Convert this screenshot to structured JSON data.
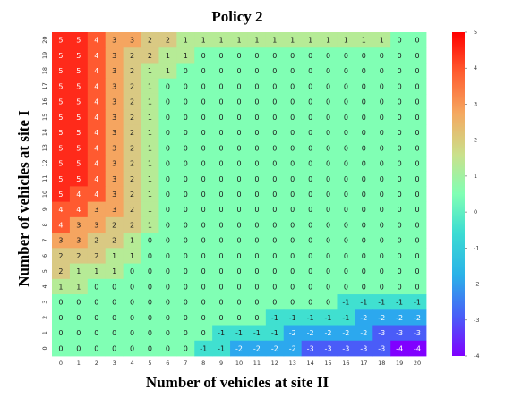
{
  "chart_data": {
    "type": "heatmap",
    "title": "Policy 2",
    "xlabel": "Number of vehicles at site II",
    "ylabel": "Number of vehicles at site I",
    "x_ticks": [
      "0",
      "1",
      "2",
      "3",
      "4",
      "5",
      "6",
      "7",
      "8",
      "9",
      "10",
      "11",
      "12",
      "13",
      "14",
      "15",
      "16",
      "17",
      "18",
      "19",
      "20"
    ],
    "y_ticks": [
      "0",
      "1",
      "2",
      "3",
      "4",
      "5",
      "6",
      "7",
      "8",
      "9",
      "10",
      "11",
      "12",
      "13",
      "14",
      "15",
      "16",
      "17",
      "18",
      "19",
      "20"
    ],
    "colorbar_ticks": [
      "5",
      "4",
      "3",
      "2",
      "1",
      "0",
      "-1",
      "-2",
      "-3",
      "-4"
    ],
    "vmin": -4,
    "vmax": 5,
    "colormap": "rainbow",
    "grid": false,
    "rows_y_descending": [
      [
        5,
        5,
        4,
        3,
        3,
        2,
        2,
        1,
        1,
        1,
        1,
        1,
        1,
        1,
        1,
        1,
        1,
        1,
        1,
        0,
        0
      ],
      [
        5,
        5,
        4,
        3,
        2,
        2,
        1,
        1,
        0,
        0,
        0,
        0,
        0,
        0,
        0,
        0,
        0,
        0,
        0,
        0,
        0
      ],
      [
        5,
        5,
        4,
        3,
        2,
        1,
        1,
        0,
        0,
        0,
        0,
        0,
        0,
        0,
        0,
        0,
        0,
        0,
        0,
        0,
        0
      ],
      [
        5,
        5,
        4,
        3,
        2,
        1,
        0,
        0,
        0,
        0,
        0,
        0,
        0,
        0,
        0,
        0,
        0,
        0,
        0,
        0,
        0
      ],
      [
        5,
        5,
        4,
        3,
        2,
        1,
        0,
        0,
        0,
        0,
        0,
        0,
        0,
        0,
        0,
        0,
        0,
        0,
        0,
        0,
        0
      ],
      [
        5,
        5,
        4,
        3,
        2,
        1,
        0,
        0,
        0,
        0,
        0,
        0,
        0,
        0,
        0,
        0,
        0,
        0,
        0,
        0,
        0
      ],
      [
        5,
        5,
        4,
        3,
        2,
        1,
        0,
        0,
        0,
        0,
        0,
        0,
        0,
        0,
        0,
        0,
        0,
        0,
        0,
        0,
        0
      ],
      [
        5,
        5,
        4,
        3,
        2,
        1,
        0,
        0,
        0,
        0,
        0,
        0,
        0,
        0,
        0,
        0,
        0,
        0,
        0,
        0,
        0
      ],
      [
        5,
        5,
        4,
        3,
        2,
        1,
        0,
        0,
        0,
        0,
        0,
        0,
        0,
        0,
        0,
        0,
        0,
        0,
        0,
        0,
        0
      ],
      [
        5,
        5,
        4,
        3,
        2,
        1,
        0,
        0,
        0,
        0,
        0,
        0,
        0,
        0,
        0,
        0,
        0,
        0,
        0,
        0,
        0
      ],
      [
        5,
        4,
        4,
        3,
        2,
        1,
        0,
        0,
        0,
        0,
        0,
        0,
        0,
        0,
        0,
        0,
        0,
        0,
        0,
        0,
        0
      ],
      [
        4,
        4,
        3,
        3,
        2,
        1,
        0,
        0,
        0,
        0,
        0,
        0,
        0,
        0,
        0,
        0,
        0,
        0,
        0,
        0,
        0
      ],
      [
        4,
        3,
        3,
        2,
        2,
        1,
        0,
        0,
        0,
        0,
        0,
        0,
        0,
        0,
        0,
        0,
        0,
        0,
        0,
        0,
        0
      ],
      [
        3,
        3,
        2,
        2,
        1,
        0,
        0,
        0,
        0,
        0,
        0,
        0,
        0,
        0,
        0,
        0,
        0,
        0,
        0,
        0,
        0
      ],
      [
        2,
        2,
        2,
        1,
        1,
        0,
        0,
        0,
        0,
        0,
        0,
        0,
        0,
        0,
        0,
        0,
        0,
        0,
        0,
        0,
        0
      ],
      [
        2,
        1,
        1,
        1,
        0,
        0,
        0,
        0,
        0,
        0,
        0,
        0,
        0,
        0,
        0,
        0,
        0,
        0,
        0,
        0,
        0
      ],
      [
        1,
        1,
        0,
        0,
        0,
        0,
        0,
        0,
        0,
        0,
        0,
        0,
        0,
        0,
        0,
        0,
        0,
        0,
        0,
        0,
        0
      ],
      [
        0,
        0,
        0,
        0,
        0,
        0,
        0,
        0,
        0,
        0,
        0,
        0,
        0,
        0,
        0,
        0,
        -1,
        -1,
        -1,
        -1,
        -1
      ],
      [
        0,
        0,
        0,
        0,
        0,
        0,
        0,
        0,
        0,
        0,
        0,
        0,
        -1,
        -1,
        -1,
        -1,
        -1,
        -2,
        -2,
        -2,
        -2
      ],
      [
        0,
        0,
        0,
        0,
        0,
        0,
        0,
        0,
        0,
        -1,
        -1,
        -1,
        -1,
        -2,
        -2,
        -2,
        -2,
        -2,
        -3,
        -3,
        -3
      ],
      [
        0,
        0,
        0,
        0,
        0,
        0,
        0,
        0,
        -1,
        -1,
        -2,
        -2,
        -2,
        -2,
        -3,
        -3,
        -3,
        -3,
        -3,
        -4,
        -4
      ]
    ]
  }
}
